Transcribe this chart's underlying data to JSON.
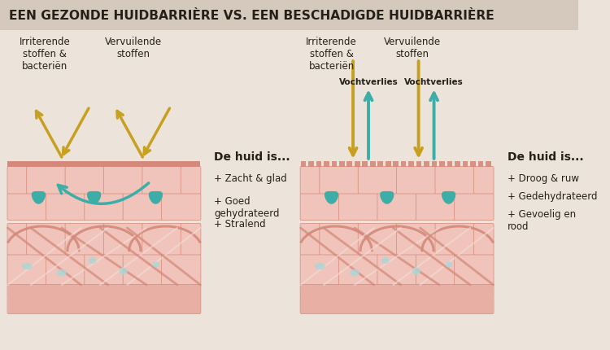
{
  "title": "EEN GEZONDE HUIDBARRIÈRE VS. EEN BESCHADIGDE HUIDBARRIÈRE",
  "bg_color": "#ece4da",
  "title_bg": "#d5c9be",
  "skin_pink_light": "#f0c4ba",
  "skin_pink_mid": "#e8b0a4",
  "skin_brick": "#d4897a",
  "barrier_solid": "#d4897a",
  "water_teal": "#3dada8",
  "fiber_salmon": "#d4897a",
  "fiber_white": "#f5ded8",
  "light_blue_blob": "#a8d8d8",
  "gold": "#c8a020",
  "text_dark": "#252018",
  "left_label1": "Irriterende\nstoffen &\nbacteriën",
  "left_label2": "Vervuilende\nstoffen",
  "right_label1": "Irriterende\nstoffen &\nbacteriën",
  "right_label2": "Vervuilende\nstoffen",
  "vochtverlies": "Vochtverlies",
  "left_title": "De huid is...",
  "left_items": [
    "Zacht & glad",
    "Goed\ngehydrateerd",
    "Stralend"
  ],
  "right_title": "De huid is...",
  "right_items": [
    "Droog & ruw",
    "Gedehydrateerd",
    "Gevoelig en\nrood"
  ]
}
